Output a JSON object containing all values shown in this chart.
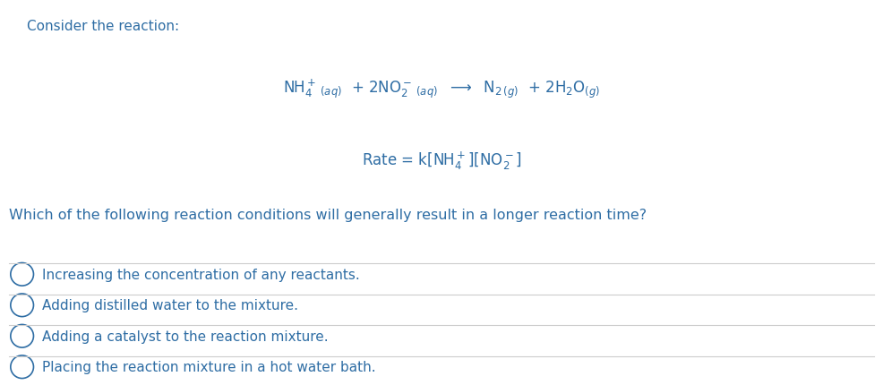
{
  "background_color": "#ffffff",
  "text_color": "#2e6da4",
  "title_text": "Consider the reaction:",
  "question_text": "Which of the following reaction conditions will generally result in a longer reaction time?",
  "options": [
    "Increasing the concentration of any reactants.",
    "Adding distilled water to the mixture.",
    "Adding a catalyst to the reaction mixture.",
    "Placing the reaction mixture in a hot water bath."
  ],
  "line_color": "#cccccc",
  "fig_width": 9.86,
  "fig_height": 4.31,
  "dpi": 100
}
